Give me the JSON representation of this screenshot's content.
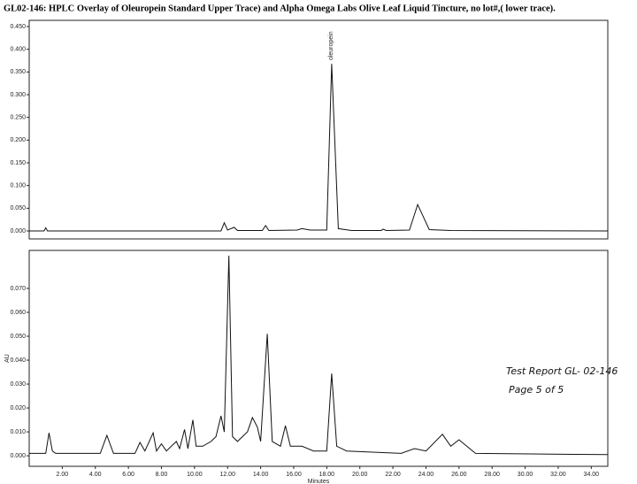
{
  "chart_data": [
    {
      "type": "line",
      "title": "GL02-146:  HPLC Overlay of Oleuropein Standard Upper Trace) and Alpha Omega Labs Olive Leaf Liquid Tincture, no lot#,( lower trace).",
      "annotations": [
        "oleuropein"
      ],
      "x": [
        0,
        0.9,
        1.0,
        1.1,
        11.6,
        11.8,
        12.0,
        12.4,
        12.6,
        14.1,
        14.3,
        14.5,
        16.2,
        16.5,
        17.0,
        18.0,
        18.3,
        18.7,
        19.5,
        21.3,
        21.4,
        21.6,
        23.0,
        23.5,
        24.2,
        25.5,
        35
      ],
      "series": [
        {
          "color": "#111111",
          "values": [
            0,
            0,
            0.007,
            0,
            0,
            0.018,
            0.002,
            0.008,
            0.001,
            0.001,
            0.012,
            0.001,
            0.002,
            0.005,
            0.002,
            0.002,
            0.368,
            0.005,
            0.001,
            0.001,
            0.004,
            0.001,
            0.002,
            0.058,
            0.003,
            0.001,
            0
          ]
        }
      ],
      "xlim": [
        0,
        35
      ],
      "ylim": [
        -0.0175,
        0.4636
      ],
      "yticks": [
        {
          "value": 0,
          "label": "0.000"
        },
        {
          "value": 0.05,
          "label": "0.050"
        },
        {
          "value": 0.1,
          "label": "0.100"
        },
        {
          "value": 0.15,
          "label": "0.150"
        },
        {
          "value": 0.2,
          "label": "0.200"
        },
        {
          "value": 0.25,
          "label": "0.250"
        },
        {
          "value": 0.3,
          "label": "0.300"
        },
        {
          "value": 0.35,
          "label": "0.350"
        },
        {
          "value": 0.4,
          "label": "0.400"
        },
        {
          "value": 0.45,
          "label": "0.450"
        }
      ]
    },
    {
      "type": "line",
      "xlabel": "Minutes",
      "ylabel": "AU",
      "annotations": [
        "Test Report GL- 02-146",
        "Page 5 of 5"
      ],
      "x": [
        0,
        1.0,
        1.2,
        1.4,
        1.6,
        4.3,
        4.7,
        5.1,
        6.4,
        6.7,
        7.0,
        7.5,
        7.7,
        8.0,
        8.3,
        8.9,
        9.1,
        9.4,
        9.6,
        9.9,
        10.1,
        10.5,
        11.0,
        11.3,
        11.6,
        11.8,
        12.08,
        12.3,
        12.6,
        13.2,
        13.5,
        13.8,
        14.0,
        14.4,
        14.7,
        15.2,
        15.5,
        15.8,
        16.5,
        17.2,
        18.0,
        18.3,
        18.6,
        19.2,
        22.5,
        23.3,
        24.0,
        25.0,
        25.5,
        26.0,
        27.0,
        35
      ],
      "series": [
        {
          "color": "#111111",
          "values": [
            0.001,
            0.001,
            0.0096,
            0.002,
            0.001,
            0.001,
            0.0085,
            0.001,
            0.001,
            0.0056,
            0.002,
            0.0096,
            0.002,
            0.005,
            0.002,
            0.006,
            0.003,
            0.011,
            0.003,
            0.015,
            0.004,
            0.004,
            0.006,
            0.008,
            0.0167,
            0.01,
            0.0837,
            0.008,
            0.006,
            0.01,
            0.016,
            0.012,
            0.006,
            0.051,
            0.006,
            0.004,
            0.0126,
            0.004,
            0.004,
            0.002,
            0.002,
            0.0344,
            0.004,
            0.002,
            0.001,
            0.003,
            0.002,
            0.009,
            0.004,
            0.0067,
            0.001,
            0.0005
          ]
        }
      ],
      "xlim": [
        0,
        35
      ],
      "ylim": [
        -0.0044,
        0.0859
      ],
      "xticks": [
        {
          "value": 2,
          "label": "2.00"
        },
        {
          "value": 4,
          "label": "4.00"
        },
        {
          "value": 6,
          "label": "6.00"
        },
        {
          "value": 8,
          "label": "8.00"
        },
        {
          "value": 10,
          "label": "10.00"
        },
        {
          "value": 12,
          "label": "12.00"
        },
        {
          "value": 14,
          "label": "14.00"
        },
        {
          "value": 16,
          "label": "16.00"
        },
        {
          "value": 18,
          "label": "18.00"
        },
        {
          "value": 20,
          "label": "20.00"
        },
        {
          "value": 22,
          "label": "22.00"
        },
        {
          "value": 24,
          "label": "24.00"
        },
        {
          "value": 26,
          "label": "26.00"
        },
        {
          "value": 28,
          "label": "28.00"
        },
        {
          "value": 30,
          "label": "30.00"
        },
        {
          "value": 32,
          "label": "32.00"
        },
        {
          "value": 34,
          "label": "34.00"
        }
      ],
      "yticks": [
        {
          "value": 0,
          "label": "0.000"
        },
        {
          "value": 0.01,
          "label": "0.010"
        },
        {
          "value": 0.02,
          "label": "0.020"
        },
        {
          "value": 0.03,
          "label": "0.030"
        },
        {
          "value": 0.04,
          "label": "0.040"
        },
        {
          "value": 0.05,
          "label": "0.050"
        },
        {
          "value": 0.06,
          "label": "0.060"
        },
        {
          "value": 0.07,
          "label": "0.070"
        }
      ]
    }
  ]
}
